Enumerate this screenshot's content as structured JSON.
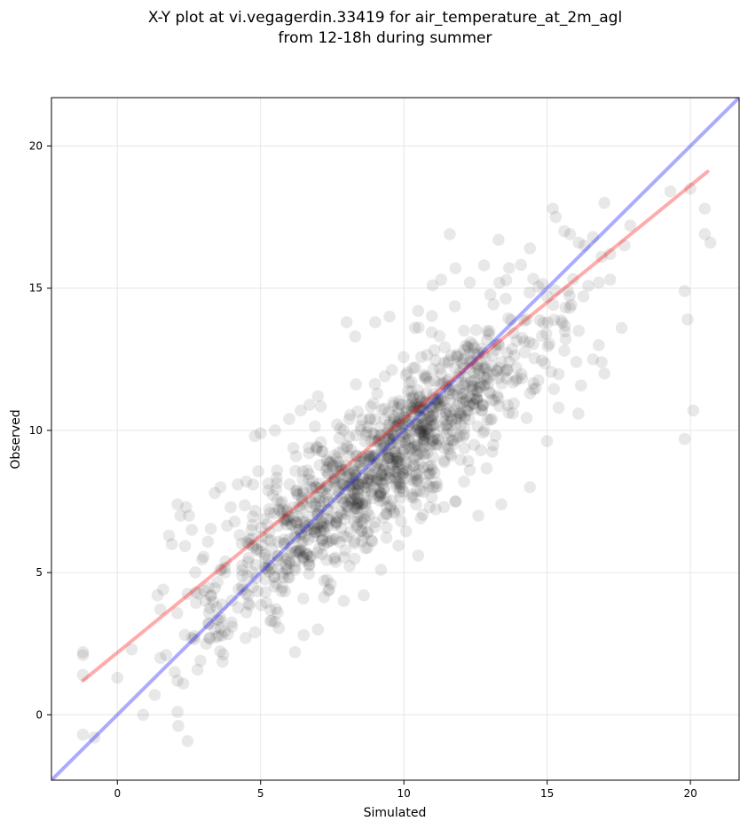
{
  "chart_data": {
    "type": "scatter",
    "title_lines": [
      "X-Y plot at vi.vegagerdin.33419 for air_temperature_at_2m_agl",
      "from 12-18h during summer"
    ],
    "xlabel": "Simulated",
    "ylabel": "Observed",
    "xlim": [
      -2.3,
      21.7
    ],
    "ylim": [
      -2.3,
      21.7
    ],
    "xticks": [
      0,
      5,
      10,
      15,
      20
    ],
    "yticks": [
      0,
      5,
      10,
      15,
      20
    ],
    "grid": true,
    "point_color": "#000000",
    "point_opacity": 0.09,
    "reference_line": {
      "label": "1:1",
      "color": "#0000ff",
      "opacity": 0.33,
      "x": [
        -2.3,
        21.7
      ],
      "y": [
        -2.3,
        21.7
      ]
    },
    "fit_line": {
      "label": "linear fit",
      "color": "#ff0000",
      "opacity": 0.33,
      "x": [
        -1.2,
        20.6
      ],
      "y": [
        1.2,
        19.1
      ]
    },
    "outlier_points": [
      [
        -1.2,
        2.1
      ],
      [
        -1.2,
        2.2
      ],
      [
        -1.2,
        1.4
      ],
      [
        -1.2,
        -0.7
      ],
      [
        -0.8,
        -0.8
      ],
      [
        0.0,
        1.3
      ],
      [
        0.9,
        0.0
      ],
      [
        0.5,
        2.3
      ],
      [
        1.3,
        0.7
      ],
      [
        2.1,
        0.1
      ],
      [
        2.1,
        1.2
      ],
      [
        2.3,
        1.1
      ],
      [
        2.0,
        1.5
      ],
      [
        1.5,
        2.0
      ],
      [
        1.7,
        2.1
      ],
      [
        2.6,
        2.7
      ],
      [
        2.9,
        1.9
      ],
      [
        3.1,
        2.5
      ],
      [
        1.5,
        3.7
      ],
      [
        1.6,
        4.4
      ],
      [
        1.4,
        4.2
      ],
      [
        1.8,
        6.3
      ],
      [
        1.9,
        6.0
      ],
      [
        2.1,
        7.4
      ],
      [
        2.2,
        7.0
      ],
      [
        2.4,
        7.3
      ],
      [
        2.5,
        7.0
      ],
      [
        2.6,
        6.5
      ],
      [
        3.4,
        7.8
      ],
      [
        3.6,
        8.0
      ],
      [
        4.2,
        8.1
      ],
      [
        4.5,
        8.2
      ],
      [
        4.8,
        9.8
      ],
      [
        5.0,
        9.9
      ],
      [
        5.5,
        10.0
      ],
      [
        6.0,
        10.4
      ],
      [
        6.4,
        10.7
      ],
      [
        7.0,
        11.2
      ],
      [
        8.0,
        13.8
      ],
      [
        8.3,
        13.3
      ],
      [
        9.0,
        13.8
      ],
      [
        9.5,
        14.0
      ],
      [
        10.5,
        14.2
      ],
      [
        11.0,
        15.1
      ],
      [
        11.3,
        15.3
      ],
      [
        11.6,
        16.9
      ],
      [
        11.8,
        15.7
      ],
      [
        12.3,
        15.2
      ],
      [
        12.8,
        15.8
      ],
      [
        13.3,
        16.7
      ],
      [
        14.4,
        16.4
      ],
      [
        15.2,
        17.8
      ],
      [
        15.3,
        17.5
      ],
      [
        15.6,
        17.0
      ],
      [
        15.8,
        16.9
      ],
      [
        16.1,
        16.6
      ],
      [
        16.3,
        16.5
      ],
      [
        16.6,
        16.8
      ],
      [
        17.0,
        18.0
      ],
      [
        17.7,
        16.5
      ],
      [
        17.9,
        17.2
      ],
      [
        19.3,
        18.4
      ],
      [
        20.0,
        18.5
      ],
      [
        20.5,
        17.8
      ],
      [
        20.5,
        16.9
      ],
      [
        20.7,
        16.6
      ],
      [
        19.8,
        14.9
      ],
      [
        19.9,
        13.9
      ],
      [
        20.1,
        10.7
      ],
      [
        19.8,
        9.7
      ],
      [
        16.8,
        15.2
      ],
      [
        16.9,
        16.1
      ],
      [
        17.2,
        16.2
      ],
      [
        17.2,
        15.3
      ],
      [
        16.8,
        13.0
      ],
      [
        16.9,
        12.4
      ],
      [
        17.0,
        12.0
      ],
      [
        16.6,
        12.5
      ],
      [
        17.6,
        13.6
      ],
      [
        16.1,
        13.5
      ],
      [
        15.6,
        12.8
      ],
      [
        15.4,
        10.8
      ],
      [
        14.4,
        11.3
      ],
      [
        13.8,
        10.6
      ],
      [
        13.2,
        9.8
      ],
      [
        12.3,
        8.6
      ],
      [
        12.6,
        7.0
      ],
      [
        13.4,
        7.4
      ],
      [
        14.4,
        8.0
      ],
      [
        11.4,
        7.3
      ],
      [
        10.5,
        5.6
      ],
      [
        9.2,
        5.1
      ],
      [
        7.4,
        4.4
      ],
      [
        8.6,
        4.2
      ],
      [
        7.9,
        4.0
      ],
      [
        7.0,
        3.0
      ],
      [
        6.2,
        2.2
      ],
      [
        6.5,
        2.8
      ],
      [
        5.4,
        3.3
      ],
      [
        5.6,
        3.6
      ],
      [
        4.5,
        3.6
      ],
      [
        4.8,
        2.9
      ],
      [
        3.2,
        3.2
      ],
      [
        3.6,
        3.3
      ],
      [
        4.0,
        3.1
      ],
      [
        11.0,
        8.0
      ],
      [
        11.8,
        7.5
      ],
      [
        12.1,
        8.2
      ],
      [
        10.9,
        7.3
      ],
      [
        9.9,
        6.8
      ],
      [
        8.9,
        6.1
      ],
      [
        8.5,
        6.8
      ]
    ]
  }
}
